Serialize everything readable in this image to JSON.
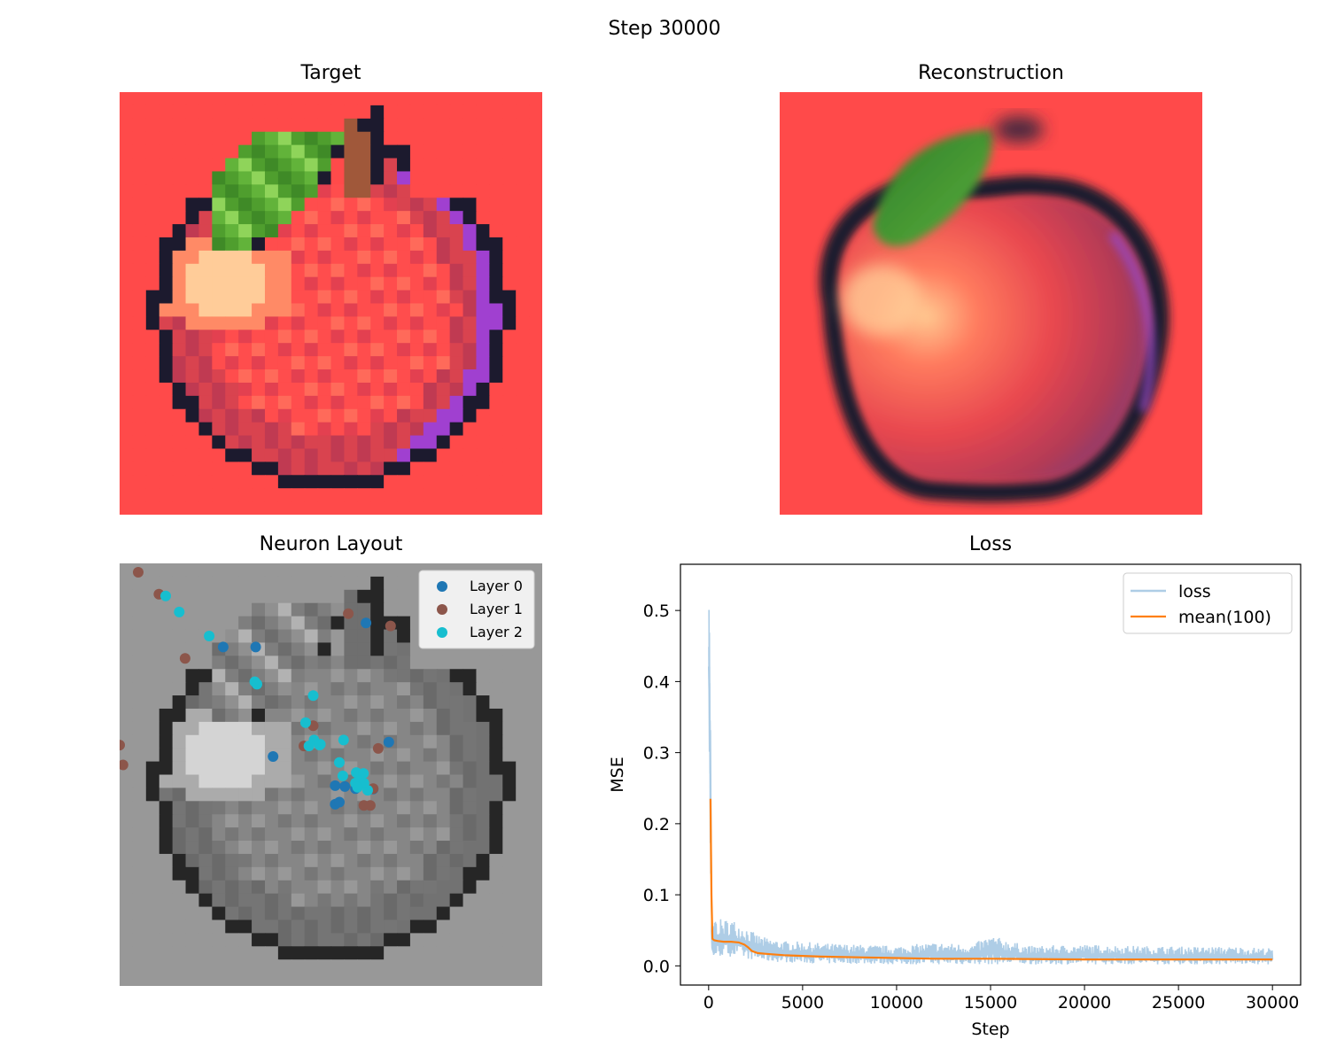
{
  "figure": {
    "suptitle": "Step 30000"
  },
  "panels": {
    "target": {
      "title": "Target"
    },
    "reconstruction": {
      "title": "Reconstruction"
    },
    "layout": {
      "title": "Neuron Layout"
    },
    "loss": {
      "title": "Loss"
    }
  },
  "colors": {
    "background_red": "#ff4a4a",
    "outline": "#1c1a2e",
    "leaf_green": "#4f9e2e",
    "stem_brown": "#a0583a",
    "rim_purple": "#a040d0",
    "highlight": "#ffcc99",
    "layer0": "#1f77b4",
    "layer1": "#8c564b",
    "layer2": "#17becf",
    "loss_raw": "#aecde6",
    "loss_mean": "#ff7f0e"
  },
  "chart_data": [
    {
      "type": "scatter",
      "title": "Neuron Layout",
      "legend_position": "top-right",
      "series": [
        {
          "name": "Layer 0",
          "color": "#1f77b4",
          "points": [
            [
              0.322,
              0.198
            ],
            [
              0.583,
              0.141
            ],
            [
              0.363,
              0.457
            ],
            [
              0.637,
              0.423
            ],
            [
              0.51,
              0.526
            ],
            [
              0.533,
              0.528
            ],
            [
              0.558,
              0.533
            ],
            [
              0.51,
              0.57
            ],
            [
              0.52,
              0.565
            ],
            [
              0.245,
              0.198
            ],
            [
              0.6,
              0.534
            ]
          ]
        },
        {
          "name": "Layer 1",
          "color": "#8c564b",
          "points": [
            [
              0.044,
              0.021
            ],
            [
              0.093,
              0.073
            ],
            [
              0.155,
              0.225
            ],
            [
              0.541,
              0.119
            ],
            [
              0.641,
              0.148
            ],
            [
              0.0,
              0.43
            ],
            [
              0.008,
              0.477
            ],
            [
              0.436,
              0.432
            ],
            [
              0.458,
              0.384
            ],
            [
              0.612,
              0.438
            ],
            [
              0.6,
              0.533
            ],
            [
              0.578,
              0.573
            ],
            [
              0.593,
              0.573
            ]
          ]
        },
        {
          "name": "Layer 2",
          "color": "#17becf",
          "points": [
            [
              0.109,
              0.077
            ],
            [
              0.141,
              0.115
            ],
            [
              0.212,
              0.172
            ],
            [
              0.32,
              0.28
            ],
            [
              0.325,
              0.286
            ],
            [
              0.458,
              0.313
            ],
            [
              0.44,
              0.377
            ],
            [
              0.46,
              0.418
            ],
            [
              0.475,
              0.428
            ],
            [
              0.448,
              0.432
            ],
            [
              0.53,
              0.418
            ],
            [
              0.52,
              0.471
            ],
            [
              0.528,
              0.503
            ],
            [
              0.56,
              0.495
            ],
            [
              0.577,
              0.497
            ],
            [
              0.558,
              0.52
            ],
            [
              0.568,
              0.515
            ],
            [
              0.587,
              0.537
            ],
            [
              0.578,
              0.52
            ],
            [
              0.563,
              0.53
            ],
            [
              0.473,
              0.43
            ]
          ]
        }
      ]
    },
    {
      "type": "line",
      "title": "Loss",
      "xlabel": "Step",
      "ylabel": "MSE",
      "xlim": [
        -1500,
        31500
      ],
      "ylim": [
        -0.027,
        0.565
      ],
      "xticks": [
        0,
        5000,
        10000,
        15000,
        20000,
        25000,
        30000
      ],
      "xtick_labels": [
        "0",
        "5000",
        "10000",
        "15000",
        "20000",
        "25000",
        "30000"
      ],
      "yticks": [
        0.0,
        0.1,
        0.2,
        0.3,
        0.4,
        0.5
      ],
      "ytick_labels": [
        "0.0",
        "0.1",
        "0.2",
        "0.3",
        "0.4",
        "0.5"
      ],
      "legend_position": "top-right",
      "series": [
        {
          "name": "loss",
          "color": "#aecde6",
          "x": [
            0,
            30,
            60,
            100,
            150,
            200,
            300,
            500,
            800,
            1200,
            1600,
            2000,
            2500,
            3000,
            4000,
            5000,
            6000,
            8000,
            10000,
            12000,
            14000,
            15000,
            17000,
            20000,
            23000,
            26000,
            28000,
            30000
          ],
          "y_upper": [
            0.52,
            0.54,
            0.42,
            0.34,
            0.06,
            0.055,
            0.062,
            0.066,
            0.065,
            0.067,
            0.06,
            0.055,
            0.045,
            0.04,
            0.035,
            0.034,
            0.032,
            0.03,
            0.028,
            0.033,
            0.03,
            0.043,
            0.028,
            0.03,
            0.028,
            0.027,
            0.027,
            0.025
          ],
          "y_lower": [
            0.3,
            0.25,
            0.15,
            0.1,
            0.02,
            0.015,
            0.014,
            0.013,
            0.013,
            0.013,
            0.012,
            0.01,
            0.008,
            0.006,
            0.005,
            0.004,
            0.003,
            0.003,
            0.002,
            0.002,
            0.002,
            0.002,
            0.002,
            0.002,
            0.002,
            0.002,
            0.002,
            0.002
          ]
        },
        {
          "name": "mean(100)",
          "color": "#ff7f0e",
          "x": [
            100,
            150,
            200,
            300,
            500,
            800,
            1200,
            1600,
            1900,
            2100,
            2300,
            2600,
            3000,
            4000,
            5000,
            6000,
            8000,
            10000,
            12000,
            15000,
            20000,
            25000,
            28000,
            30000
          ],
          "y": [
            0.235,
            0.1,
            0.038,
            0.036,
            0.035,
            0.034,
            0.034,
            0.033,
            0.03,
            0.026,
            0.021,
            0.018,
            0.017,
            0.015,
            0.014,
            0.013,
            0.012,
            0.011,
            0.01,
            0.01,
            0.009,
            0.009,
            0.009,
            0.009
          ]
        }
      ]
    }
  ]
}
